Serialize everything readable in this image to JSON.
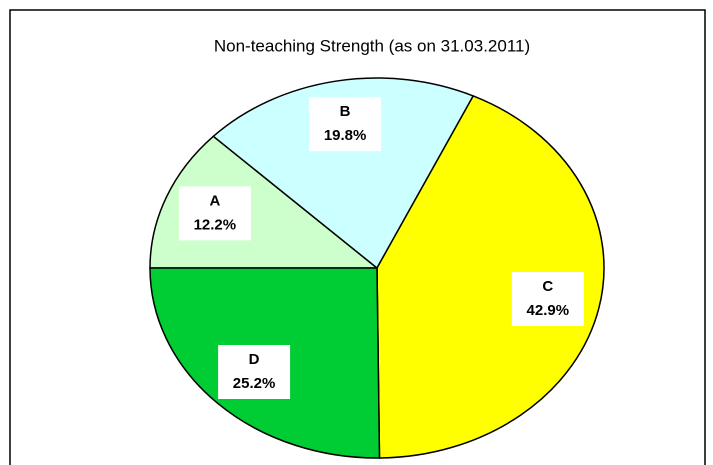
{
  "chart_data": {
    "type": "pie",
    "title": "Non-teaching Strength (as on 31.03.2011)",
    "categories": [
      "A",
      "B",
      "C",
      "D"
    ],
    "values": [
      12.2,
      19.8,
      42.9,
      25.2
    ],
    "value_labels": [
      "12.2%",
      "19.8%",
      "42.9%",
      "25.2%"
    ],
    "colors": [
      "#ccffcc",
      "#ccffff",
      "#ffff00",
      "#00cc33"
    ]
  }
}
